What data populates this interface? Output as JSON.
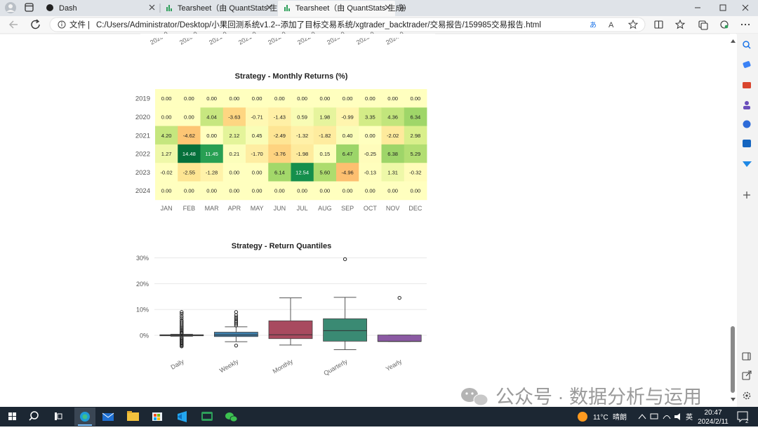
{
  "browser": {
    "tabs": [
      {
        "title": "Dash",
        "active": false
      },
      {
        "title": "Tearsheet（由 QuantStats 生成）",
        "active": false
      },
      {
        "title": "Tearsheet（由 QuantStats 生成）",
        "active": true
      }
    ],
    "new_tab_symbol": "+",
    "address_prefix": "文件",
    "address_sep": "|",
    "url": "C:/Users/Administrator/Desktop/小果回测系统v1.2--添加了目标交易系统/xgtrader_backtrader/交易报告/159985交易报告.html"
  },
  "top_axis_fragments": [
    "2020-0",
    "2020-0",
    "2021-0",
    "2021-0",
    "2022-0",
    "2022-0",
    "2023-0",
    "2023-0",
    "2024-0"
  ],
  "heatmap": {
    "title": "Strategy - Monthly Returns (%)",
    "chart_data": {
      "type": "heatmap",
      "title": "Strategy - Monthly Returns (%)",
      "years": [
        "2019",
        "2020",
        "2021",
        "2022",
        "2023",
        "2024"
      ],
      "months": [
        "JAN",
        "FEB",
        "MAR",
        "APR",
        "MAY",
        "JUN",
        "JUL",
        "AUG",
        "SEP",
        "OCT",
        "NOV",
        "DEC"
      ],
      "values": [
        [
          "0.00",
          "0.00",
          "0.00",
          "0.00",
          "0.00",
          "0.00",
          "0.00",
          "0.00",
          "0.00",
          "0.00",
          "0.00",
          "0.00"
        ],
        [
          "0.00",
          "0.00",
          "4.04",
          "-3.63",
          "-0.71",
          "-1.43",
          "0.59",
          "1.98",
          "-0.99",
          "3.35",
          "4.36",
          "6.34"
        ],
        [
          "4.20",
          "-4.62",
          "0.00",
          "2.12",
          "0.45",
          "-2.49",
          "-1.32",
          "-1.82",
          "0.40",
          "0.00",
          "-2.02",
          "2.98"
        ],
        [
          "1.27",
          "14.48",
          "11.45",
          "0.21",
          "-1.70",
          "-3.76",
          "-1.98",
          "0.15",
          "6.47",
          "-0.25",
          "6.38",
          "5.29"
        ],
        [
          "-0.02",
          "-2.55",
          "-1.28",
          "0.00",
          "0.00",
          "6.14",
          "12.54",
          "5.60",
          "-4.96",
          "-0.13",
          "1.31",
          "-0.32"
        ],
        [
          "0.00",
          "0.00",
          "0.00",
          "0.00",
          "0.00",
          "0.00",
          "0.00",
          "0.00",
          "0.00",
          "0.00",
          "0.00",
          "0.00"
        ]
      ]
    }
  },
  "boxplot": {
    "title": "Strategy - Return Quantiles",
    "chart_data": {
      "type": "box",
      "title": "Strategy - Return Quantiles",
      "y_ticks": [
        "30%",
        "20%",
        "10%",
        "0%"
      ],
      "y_tick_values": [
        30,
        20,
        10,
        0
      ],
      "ylim": [
        -6,
        31
      ],
      "categories": [
        "Daily",
        "Weekly",
        "Monthly",
        "Quarterly",
        "Yearly"
      ],
      "colors": [
        "#e9b33a",
        "#3d7ca6",
        "#a84a5f",
        "#3a8a73",
        "#8b5aa3"
      ],
      "boxes": [
        {
          "name": "Daily",
          "q1": -0.2,
          "median": 0.0,
          "q3": 0.2,
          "whisker_low": -0.4,
          "whisker_high": 0.4,
          "outliers": [
            9,
            8.3,
            7.4,
            6.6,
            5.8,
            5.2,
            4.6,
            4.0,
            3.4,
            2.9,
            2.4,
            1.9,
            1.4,
            1.0,
            0.7,
            -0.8,
            -1.2,
            -1.6,
            -2.0,
            -2.4,
            -2.8,
            -3.2,
            -3.6,
            -4.0,
            -4.3
          ]
        },
        {
          "name": "Weekly",
          "q1": -0.5,
          "median": 0.1,
          "q3": 1.2,
          "whisker_low": -2.5,
          "whisker_high": 3.3,
          "outliers": [
            9.0,
            7.8,
            7.0,
            6.3,
            5.6,
            5.0,
            4.4,
            3.8,
            -4.0
          ]
        },
        {
          "name": "Monthly",
          "q1": -1.3,
          "median": 0.2,
          "q3": 5.6,
          "whisker_low": -3.8,
          "whisker_high": 14.5,
          "outliers": []
        },
        {
          "name": "Quarterly",
          "q1": -2.3,
          "median": 1.8,
          "q3": 6.4,
          "whisker_low": -5.6,
          "whisker_high": 14.7,
          "outliers": [
            29.5
          ]
        },
        {
          "name": "Yearly",
          "q1": -2.4,
          "median": -2.4,
          "q3": 0.1,
          "whisker_low": -2.4,
          "whisker_high": 0.1,
          "outliers": [
            14.5
          ]
        }
      ]
    }
  },
  "taskbar": {
    "weather_temp": "11°C",
    "weather_desc": "晴朗",
    "ime": "英",
    "time": "20:47",
    "date": "2024/2/11",
    "notif_count": "2"
  },
  "watermark": "公众号 · 数据分析与运用"
}
